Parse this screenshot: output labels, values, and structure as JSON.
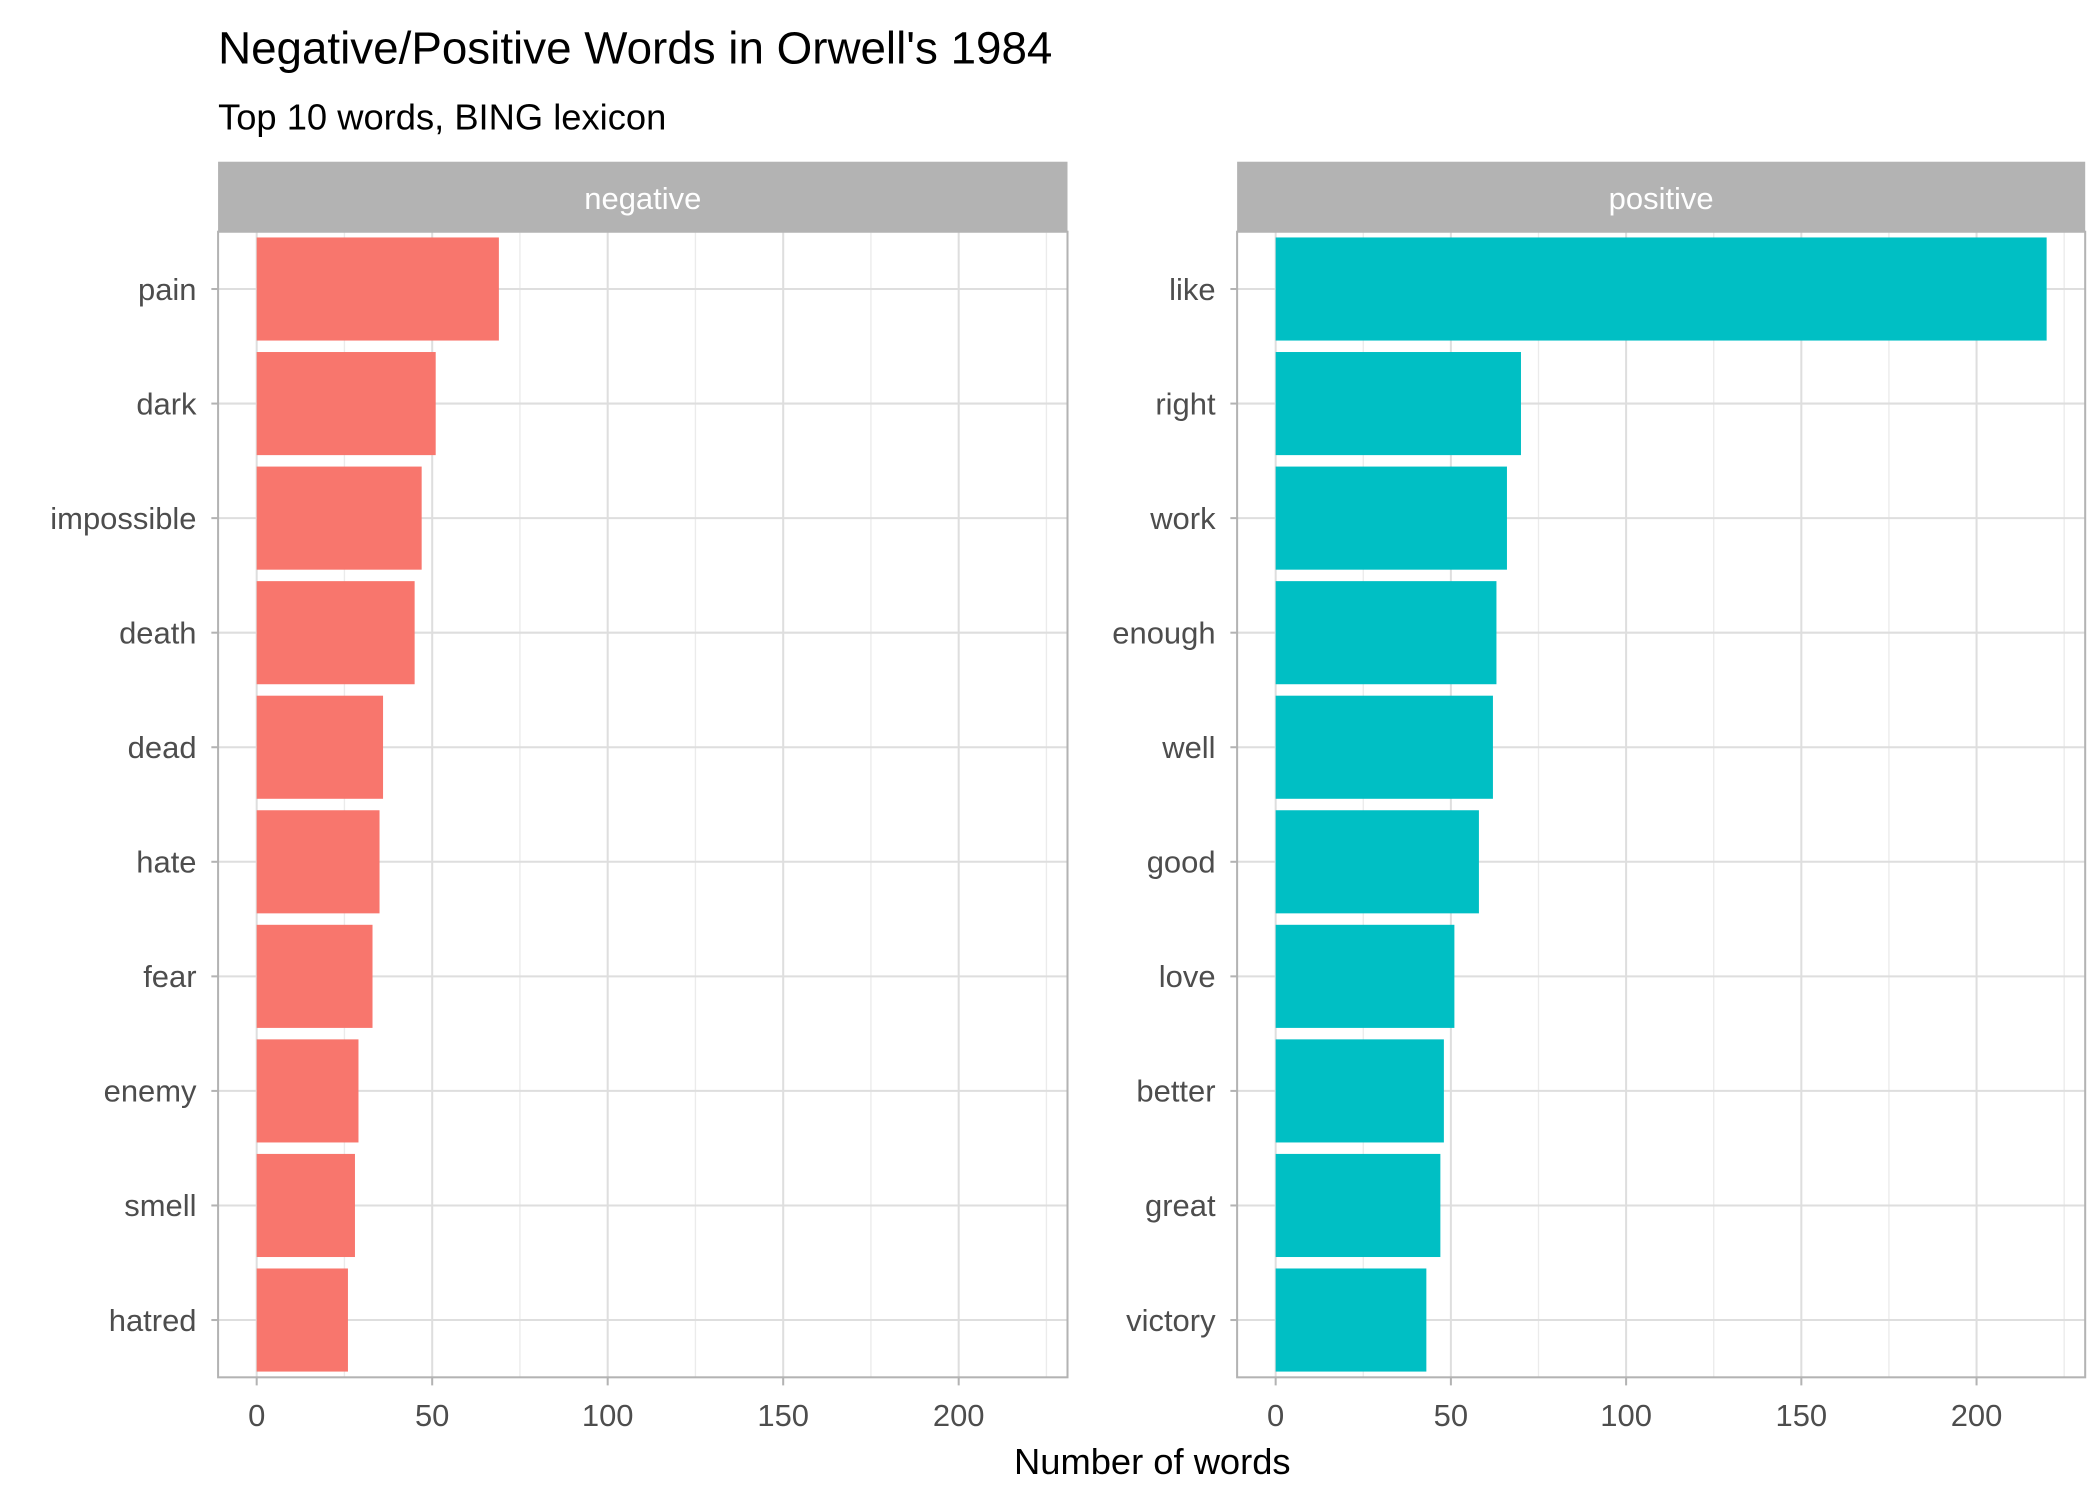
{
  "chart_data": {
    "type": "bar",
    "orientation": "horizontal",
    "title": "Negative/Positive Words in Orwell's 1984",
    "subtitle": "Top 10 words, BING lexicon",
    "xlabel": "Number of words",
    "ylabel": "",
    "xlim": [
      -11,
      231
    ],
    "xticks": [
      0,
      50,
      100,
      150,
      200
    ],
    "grid": true,
    "legend": "none",
    "panels": [
      {
        "name": "negative",
        "color": "#F8766D",
        "categories": [
          "pain",
          "dark",
          "impossible",
          "death",
          "dead",
          "hate",
          "fear",
          "enemy",
          "smell",
          "hatred"
        ],
        "values": [
          69,
          51,
          47,
          45,
          36,
          35,
          33,
          29,
          28,
          26
        ]
      },
      {
        "name": "positive",
        "color": "#00BFC4",
        "categories": [
          "like",
          "right",
          "work",
          "enough",
          "well",
          "good",
          "love",
          "better",
          "great",
          "victory"
        ],
        "values": [
          220,
          70,
          66,
          63,
          62,
          58,
          51,
          48,
          47,
          43
        ]
      }
    ]
  }
}
